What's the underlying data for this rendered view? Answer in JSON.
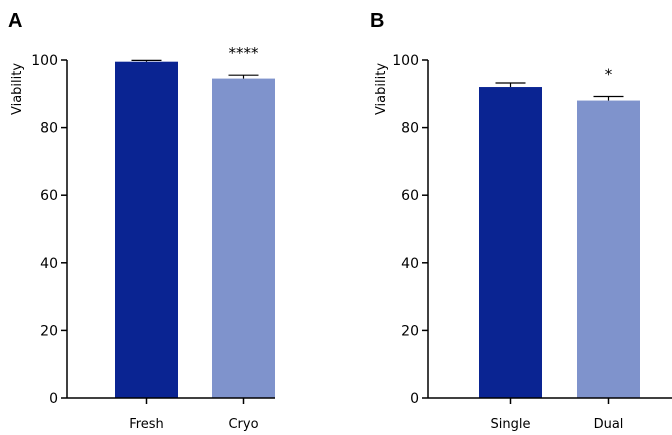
{
  "chart_data": [
    {
      "type": "bar",
      "panel_label": "A",
      "ylabel": "Viability",
      "ylim": [
        0,
        100
      ],
      "yticks": [
        0,
        20,
        40,
        60,
        80,
        100
      ],
      "categories": [
        "Fresh",
        "Cryo"
      ],
      "values": [
        99.5,
        94.5
      ],
      "errors": [
        0.4,
        1.0
      ],
      "colors": [
        "#0a2492",
        "#7f93cc"
      ],
      "significance": "****"
    },
    {
      "type": "bar",
      "panel_label": "B",
      "ylabel": "Viability",
      "ylim": [
        0,
        100
      ],
      "yticks": [
        0,
        20,
        40,
        60,
        80,
        100
      ],
      "categories": [
        "Single",
        "Dual"
      ],
      "values": [
        92,
        88
      ],
      "errors": [
        1.2,
        1.2
      ],
      "colors": [
        "#0a2492",
        "#7f93cc"
      ],
      "significance": "*"
    }
  ]
}
